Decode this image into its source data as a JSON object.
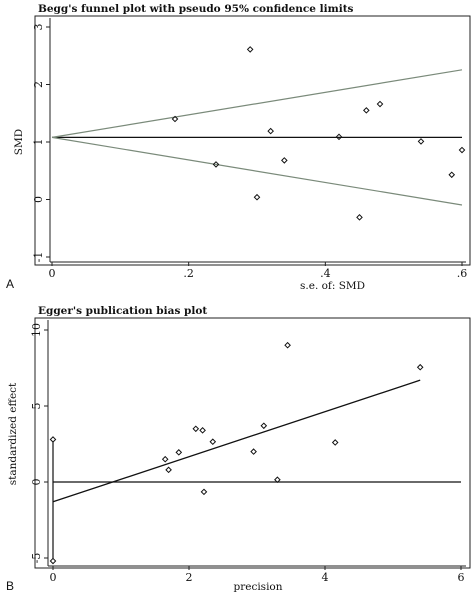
{
  "chart_data": [
    {
      "panel_label": "A",
      "type": "scatter",
      "title": "Begg's funnel plot with pseudo 95% confidence limits",
      "xlabel": "s.e. of: SMD",
      "ylabel": "SMD",
      "xlim": [
        0,
        0.6
      ],
      "ylim": [
        -1,
        3
      ],
      "x_ticks": [
        0,
        0.2,
        0.4,
        0.6
      ],
      "x_tick_labels": [
        "0",
        ".2",
        ".4",
        ".6"
      ],
      "y_ticks": [
        -1,
        0,
        1,
        2,
        3
      ],
      "y_tick_labels": [
        "-1",
        "0",
        "1",
        "2",
        "3"
      ],
      "grid": false,
      "points": [
        {
          "x": 0.18,
          "y": 1.4
        },
        {
          "x": 0.24,
          "y": 0.61
        },
        {
          "x": 0.29,
          "y": 2.61
        },
        {
          "x": 0.3,
          "y": 0.04
        },
        {
          "x": 0.32,
          "y": 1.19
        },
        {
          "x": 0.34,
          "y": 0.68
        },
        {
          "x": 0.42,
          "y": 1.09
        },
        {
          "x": 0.45,
          "y": -0.31
        },
        {
          "x": 0.46,
          "y": 1.55
        },
        {
          "x": 0.48,
          "y": 1.66
        },
        {
          "x": 0.54,
          "y": 1.01
        },
        {
          "x": 0.585,
          "y": 0.43
        },
        {
          "x": 0.6,
          "y": 0.86
        }
      ],
      "pooled_effect": 1.08,
      "ci_multiplier": 1.96
    },
    {
      "panel_label": "B",
      "type": "scatter",
      "title": "Egger's publication bias plot",
      "xlabel": "precision",
      "ylabel": "standardized effect",
      "xlim": [
        0,
        6
      ],
      "ylim": [
        -5,
        10
      ],
      "x_ticks": [
        0,
        2,
        4,
        6
      ],
      "x_tick_labels": [
        "0",
        "2",
        "4",
        "6"
      ],
      "y_ticks": [
        -5,
        0,
        5,
        10
      ],
      "y_tick_labels": [
        "-5",
        "0",
        "5",
        "10"
      ],
      "grid": false,
      "points": [
        {
          "x": 1.65,
          "y": 1.5
        },
        {
          "x": 1.7,
          "y": 0.8
        },
        {
          "x": 1.85,
          "y": 1.95
        },
        {
          "x": 2.1,
          "y": 3.5
        },
        {
          "x": 2.2,
          "y": 3.4
        },
        {
          "x": 2.22,
          "y": -0.65
        },
        {
          "x": 2.35,
          "y": 2.65
        },
        {
          "x": 2.95,
          "y": 2.0
        },
        {
          "x": 3.1,
          "y": 3.7
        },
        {
          "x": 3.3,
          "y": 0.15
        },
        {
          "x": 3.45,
          "y": 9.0
        },
        {
          "x": 4.15,
          "y": 2.6
        },
        {
          "x": 5.4,
          "y": 7.55
        }
      ],
      "regression_line": {
        "x_start": 0,
        "y_start": -1.3,
        "x_end": 5.4,
        "y_end": 6.7
      },
      "intercept_ci": {
        "x": 0,
        "low": -5.2,
        "high": 2.8
      }
    }
  ]
}
